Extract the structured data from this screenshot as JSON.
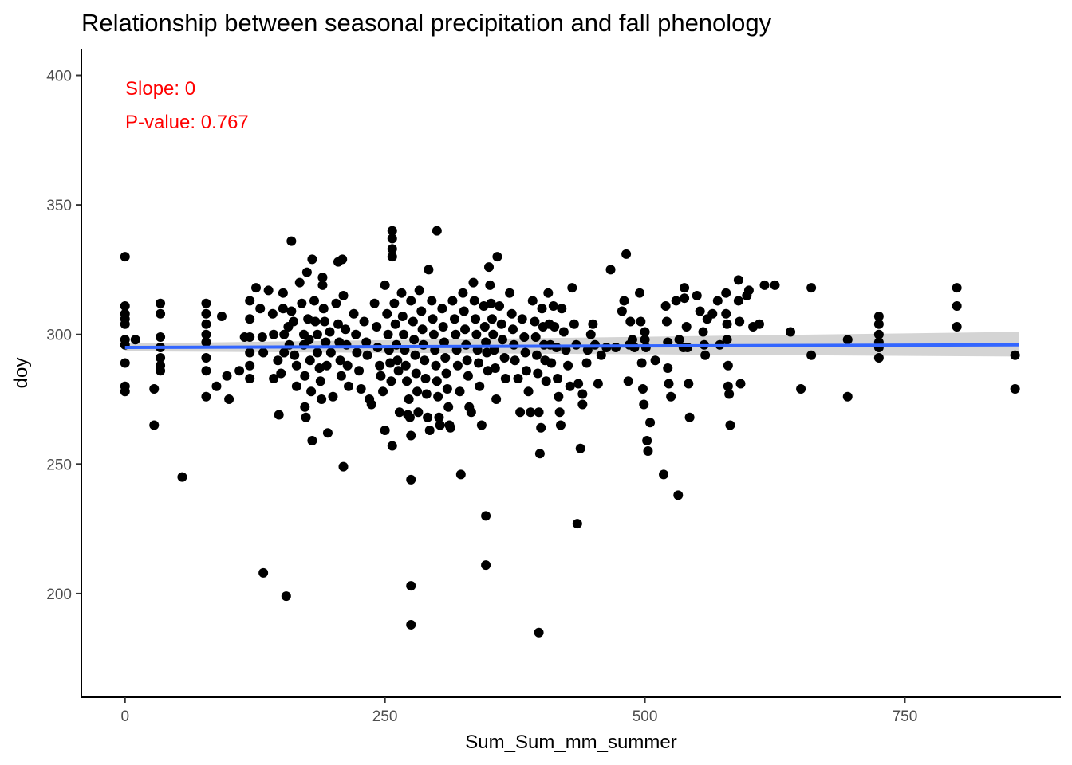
{
  "chart_data": {
    "type": "scatter",
    "title": "Relationship between seasonal precipitation and fall phenology",
    "xlabel": "Sum_Sum_mm_summer",
    "ylabel": "doy",
    "xlim": [
      -42,
      900
    ],
    "ylim": [
      160,
      410
    ],
    "xticks": [
      0,
      250,
      500,
      750
    ],
    "yticks": [
      200,
      250,
      300,
      350,
      400
    ],
    "grid": false,
    "annotations": [
      "Slope: 0",
      "P-value: 0.767"
    ],
    "colors": {
      "points": "#000000",
      "trend": "#3366ff",
      "ribbon": "#bdbdbd",
      "annotation": "#ff0000"
    },
    "trend_line": {
      "x": [
        0,
        860
      ],
      "y": [
        295.0,
        296.0
      ],
      "ci_lower": [
        293.5,
        291.5
      ],
      "ci_upper": [
        296.5,
        301.0
      ]
    },
    "points": [
      [
        0,
        330
      ],
      [
        0,
        311
      ],
      [
        0,
        308
      ],
      [
        0,
        306
      ],
      [
        0,
        304
      ],
      [
        0,
        298
      ],
      [
        0,
        296
      ],
      [
        0,
        289
      ],
      [
        0,
        280
      ],
      [
        0,
        278
      ],
      [
        10,
        298
      ],
      [
        28,
        279
      ],
      [
        28,
        265
      ],
      [
        34,
        312
      ],
      [
        34,
        308
      ],
      [
        34,
        299
      ],
      [
        34,
        295
      ],
      [
        34,
        291
      ],
      [
        34,
        288
      ],
      [
        34,
        286
      ],
      [
        55,
        245
      ],
      [
        78,
        312
      ],
      [
        78,
        308
      ],
      [
        78,
        304
      ],
      [
        78,
        300
      ],
      [
        78,
        297
      ],
      [
        78,
        291
      ],
      [
        78,
        286
      ],
      [
        78,
        276
      ],
      [
        88,
        280
      ],
      [
        93,
        307
      ],
      [
        98,
        284
      ],
      [
        100,
        275
      ],
      [
        110,
        286
      ],
      [
        115,
        299
      ],
      [
        120,
        313
      ],
      [
        120,
        306
      ],
      [
        120,
        299
      ],
      [
        120,
        293
      ],
      [
        120,
        288
      ],
      [
        120,
        283
      ],
      [
        126,
        318
      ],
      [
        130,
        310
      ],
      [
        132,
        299
      ],
      [
        133,
        293
      ],
      [
        133,
        208
      ],
      [
        138,
        317
      ],
      [
        142,
        308
      ],
      [
        143,
        300
      ],
      [
        143,
        283
      ],
      [
        147,
        290
      ],
      [
        148,
        269
      ],
      [
        150,
        285
      ],
      [
        152,
        316
      ],
      [
        152,
        310
      ],
      [
        153,
        300
      ],
      [
        153,
        293
      ],
      [
        155,
        199
      ],
      [
        157,
        303
      ],
      [
        158,
        296
      ],
      [
        160,
        336
      ],
      [
        160,
        309
      ],
      [
        162,
        305
      ],
      [
        163,
        292
      ],
      [
        165,
        288
      ],
      [
        165,
        280
      ],
      [
        168,
        320
      ],
      [
        170,
        312
      ],
      [
        172,
        300
      ],
      [
        172,
        296
      ],
      [
        173,
        284
      ],
      [
        173,
        272
      ],
      [
        174,
        268
      ],
      [
        175,
        324
      ],
      [
        176,
        306
      ],
      [
        177,
        298
      ],
      [
        178,
        290
      ],
      [
        179,
        278
      ],
      [
        180,
        329
      ],
      [
        180,
        259
      ],
      [
        182,
        313
      ],
      [
        183,
        305
      ],
      [
        185,
        300
      ],
      [
        185,
        293
      ],
      [
        187,
        287
      ],
      [
        188,
        282
      ],
      [
        189,
        275
      ],
      [
        190,
        322
      ],
      [
        190,
        319
      ],
      [
        191,
        310
      ],
      [
        192,
        305
      ],
      [
        193,
        297
      ],
      [
        194,
        288
      ],
      [
        195,
        262
      ],
      [
        197,
        301
      ],
      [
        198,
        293
      ],
      [
        200,
        276
      ],
      [
        203,
        312
      ],
      [
        205,
        328
      ],
      [
        205,
        304
      ],
      [
        206,
        297
      ],
      [
        207,
        290
      ],
      [
        208,
        284
      ],
      [
        209,
        329
      ],
      [
        210,
        315
      ],
      [
        210,
        249
      ],
      [
        212,
        302
      ],
      [
        213,
        296
      ],
      [
        214,
        288
      ],
      [
        215,
        280
      ],
      [
        220,
        308
      ],
      [
        222,
        300
      ],
      [
        223,
        293
      ],
      [
        225,
        286
      ],
      [
        227,
        279
      ],
      [
        230,
        305
      ],
      [
        232,
        297
      ],
      [
        233,
        292
      ],
      [
        235,
        275
      ],
      [
        237,
        273
      ],
      [
        240,
        312
      ],
      [
        242,
        303
      ],
      [
        243,
        295
      ],
      [
        245,
        288
      ],
      [
        246,
        284
      ],
      [
        248,
        278
      ],
      [
        250,
        319
      ],
      [
        250,
        263
      ],
      [
        252,
        308
      ],
      [
        253,
        300
      ],
      [
        254,
        294
      ],
      [
        255,
        289
      ],
      [
        256,
        282
      ],
      [
        257,
        340
      ],
      [
        257,
        337
      ],
      [
        257,
        333
      ],
      [
        257,
        330
      ],
      [
        257,
        257
      ],
      [
        259,
        312
      ],
      [
        260,
        304
      ],
      [
        261,
        296
      ],
      [
        262,
        290
      ],
      [
        263,
        286
      ],
      [
        264,
        270
      ],
      [
        266,
        316
      ],
      [
        267,
        307
      ],
      [
        268,
        300
      ],
      [
        269,
        294
      ],
      [
        270,
        288
      ],
      [
        271,
        282
      ],
      [
        272,
        269
      ],
      [
        273,
        275
      ],
      [
        274,
        268
      ],
      [
        275,
        313
      ],
      [
        275,
        261
      ],
      [
        275,
        244
      ],
      [
        275,
        203
      ],
      [
        275,
        188
      ],
      [
        277,
        305
      ],
      [
        278,
        298
      ],
      [
        279,
        292
      ],
      [
        280,
        285
      ],
      [
        281,
        278
      ],
      [
        282,
        270
      ],
      [
        283,
        317
      ],
      [
        285,
        309
      ],
      [
        286,
        302
      ],
      [
        287,
        296
      ],
      [
        288,
        290
      ],
      [
        289,
        283
      ],
      [
        290,
        277
      ],
      [
        291,
        268
      ],
      [
        292,
        325
      ],
      [
        293,
        263
      ],
      [
        295,
        313
      ],
      [
        296,
        306
      ],
      [
        297,
        300
      ],
      [
        298,
        294
      ],
      [
        299,
        288
      ],
      [
        300,
        340
      ],
      [
        300,
        282
      ],
      [
        301,
        276
      ],
      [
        302,
        268
      ],
      [
        303,
        265
      ],
      [
        305,
        310
      ],
      [
        306,
        303
      ],
      [
        307,
        297
      ],
      [
        308,
        291
      ],
      [
        309,
        285
      ],
      [
        310,
        279
      ],
      [
        311,
        272
      ],
      [
        312,
        265
      ],
      [
        313,
        264
      ],
      [
        315,
        313
      ],
      [
        317,
        306
      ],
      [
        318,
        300
      ],
      [
        319,
        294
      ],
      [
        320,
        288
      ],
      [
        322,
        278
      ],
      [
        323,
        246
      ],
      [
        325,
        316
      ],
      [
        326,
        309
      ],
      [
        327,
        302
      ],
      [
        328,
        296
      ],
      [
        329,
        290
      ],
      [
        330,
        284
      ],
      [
        331,
        272
      ],
      [
        333,
        270
      ],
      [
        335,
        320
      ],
      [
        336,
        313
      ],
      [
        337,
        306
      ],
      [
        338,
        300
      ],
      [
        339,
        294
      ],
      [
        340,
        289
      ],
      [
        341,
        280
      ],
      [
        343,
        265
      ],
      [
        345,
        311
      ],
      [
        346,
        303
      ],
      [
        347,
        297
      ],
      [
        347,
        230
      ],
      [
        347,
        211
      ],
      [
        348,
        293
      ],
      [
        349,
        286
      ],
      [
        350,
        326
      ],
      [
        351,
        319
      ],
      [
        352,
        312
      ],
      [
        353,
        306
      ],
      [
        354,
        300
      ],
      [
        355,
        294
      ],
      [
        356,
        287
      ],
      [
        357,
        275
      ],
      [
        358,
        330
      ],
      [
        360,
        311
      ],
      [
        362,
        304
      ],
      [
        363,
        298
      ],
      [
        365,
        291
      ],
      [
        366,
        283
      ],
      [
        370,
        316
      ],
      [
        372,
        308
      ],
      [
        373,
        302
      ],
      [
        374,
        296
      ],
      [
        375,
        290
      ],
      [
        378,
        283
      ],
      [
        380,
        270
      ],
      [
        382,
        306
      ],
      [
        384,
        299
      ],
      [
        385,
        293
      ],
      [
        386,
        286
      ],
      [
        388,
        278
      ],
      [
        390,
        270
      ],
      [
        392,
        313
      ],
      [
        394,
        305
      ],
      [
        395,
        299
      ],
      [
        396,
        292
      ],
      [
        397,
        285
      ],
      [
        398,
        270
      ],
      [
        398,
        185
      ],
      [
        399,
        254
      ],
      [
        400,
        264
      ],
      [
        401,
        310
      ],
      [
        402,
        303
      ],
      [
        403,
        296
      ],
      [
        404,
        290
      ],
      [
        405,
        282
      ],
      [
        407,
        316
      ],
      [
        408,
        304
      ],
      [
        409,
        296
      ],
      [
        410,
        289
      ],
      [
        412,
        311
      ],
      [
        413,
        303
      ],
      [
        415,
        295
      ],
      [
        416,
        283
      ],
      [
        417,
        276
      ],
      [
        418,
        270
      ],
      [
        419,
        265
      ],
      [
        420,
        310
      ],
      [
        422,
        301
      ],
      [
        424,
        294
      ],
      [
        426,
        288
      ],
      [
        428,
        280
      ],
      [
        430,
        318
      ],
      [
        432,
        304
      ],
      [
        434,
        296
      ],
      [
        435,
        227
      ],
      [
        436,
        281
      ],
      [
        438,
        256
      ],
      [
        440,
        277
      ],
      [
        440,
        273
      ],
      [
        444,
        289
      ],
      [
        445,
        294
      ],
      [
        448,
        300
      ],
      [
        450,
        304
      ],
      [
        452,
        296
      ],
      [
        455,
        281
      ],
      [
        458,
        292
      ],
      [
        463,
        295
      ],
      [
        467,
        325
      ],
      [
        472,
        295
      ],
      [
        478,
        309
      ],
      [
        480,
        313
      ],
      [
        482,
        331
      ],
      [
        484,
        282
      ],
      [
        485,
        296
      ],
      [
        486,
        305
      ],
      [
        488,
        298
      ],
      [
        490,
        295
      ],
      [
        495,
        316
      ],
      [
        496,
        305
      ],
      [
        497,
        289
      ],
      [
        498,
        279
      ],
      [
        499,
        273
      ],
      [
        500,
        301
      ],
      [
        500,
        298
      ],
      [
        501,
        295
      ],
      [
        502,
        259
      ],
      [
        503,
        255
      ],
      [
        505,
        266
      ],
      [
        510,
        290
      ],
      [
        518,
        246
      ],
      [
        520,
        311
      ],
      [
        521,
        305
      ],
      [
        522,
        297
      ],
      [
        522,
        287
      ],
      [
        523,
        281
      ],
      [
        525,
        276
      ],
      [
        530,
        313
      ],
      [
        532,
        238
      ],
      [
        533,
        298
      ],
      [
        537,
        295
      ],
      [
        538,
        318
      ],
      [
        538,
        314
      ],
      [
        540,
        303
      ],
      [
        541,
        295
      ],
      [
        542,
        281
      ],
      [
        543,
        268
      ],
      [
        550,
        315
      ],
      [
        553,
        309
      ],
      [
        556,
        301
      ],
      [
        557,
        296
      ],
      [
        558,
        292
      ],
      [
        560,
        306
      ],
      [
        565,
        308
      ],
      [
        570,
        313
      ],
      [
        572,
        296
      ],
      [
        578,
        316
      ],
      [
        578,
        308
      ],
      [
        579,
        304
      ],
      [
        579,
        298
      ],
      [
        580,
        288
      ],
      [
        580,
        280
      ],
      [
        581,
        277
      ],
      [
        582,
        265
      ],
      [
        590,
        321
      ],
      [
        590,
        313
      ],
      [
        591,
        305
      ],
      [
        592,
        281
      ],
      [
        598,
        315
      ],
      [
        600,
        317
      ],
      [
        604,
        303
      ],
      [
        610,
        304
      ],
      [
        615,
        319
      ],
      [
        625,
        319
      ],
      [
        640,
        301
      ],
      [
        650,
        279
      ],
      [
        660,
        318
      ],
      [
        660,
        292
      ],
      [
        695,
        298
      ],
      [
        695,
        276
      ],
      [
        725,
        307
      ],
      [
        725,
        304
      ],
      [
        725,
        300
      ],
      [
        725,
        297
      ],
      [
        725,
        295
      ],
      [
        725,
        291
      ],
      [
        800,
        318
      ],
      [
        800,
        311
      ],
      [
        800,
        303
      ],
      [
        856,
        292
      ],
      [
        856,
        279
      ]
    ]
  }
}
